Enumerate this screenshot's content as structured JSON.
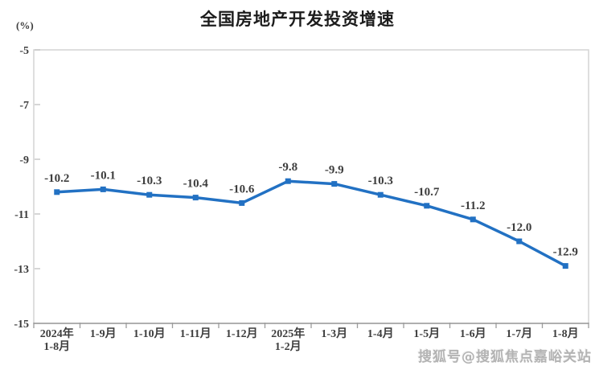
{
  "title": "全国房地产开发投资增速",
  "unit_label": "(%)",
  "watermark": "搜狐号@搜狐焦点嘉峪关站",
  "colors": {
    "line": "#2271c3",
    "marker": "#2271c3",
    "text": "#3d3d3d",
    "plot_border": "#d4d4d4",
    "x_axis": "#9c9c9c",
    "y_tick": "#bfbfbf",
    "title_text": "#1c1c1c",
    "watermark_text": "#b3b3b3"
  },
  "chart_data": {
    "type": "line",
    "title": "全国房地产开发投资增速",
    "ylabel": "(%)",
    "xlabel": "",
    "categories": [
      "2024年\n1-8月",
      "1-9月",
      "1-10月",
      "1-11月",
      "1-12月",
      "2025年\n1-2月",
      "1-3月",
      "1-4月",
      "1-5月",
      "1-6月",
      "1-7月",
      "1-8月"
    ],
    "values": [
      -10.2,
      -10.1,
      -10.3,
      -10.4,
      -10.6,
      -9.8,
      -9.9,
      -10.3,
      -10.7,
      -11.2,
      -12.0,
      -12.9
    ],
    "data_labels": [
      "-10.2",
      "-10.1",
      "-10.3",
      "-10.4",
      "-10.6",
      "-9.8",
      "-9.9",
      "-10.3",
      "-10.7",
      "-11.2",
      "-12.0",
      "-12.9"
    ],
    "ylim": [
      -15,
      -5
    ],
    "yticks": [
      -5,
      -7,
      -9,
      -11,
      -13,
      -15
    ],
    "grid": false,
    "legend_position": "none",
    "marker": "square",
    "series_name": "全国房地产开发投资增速"
  }
}
